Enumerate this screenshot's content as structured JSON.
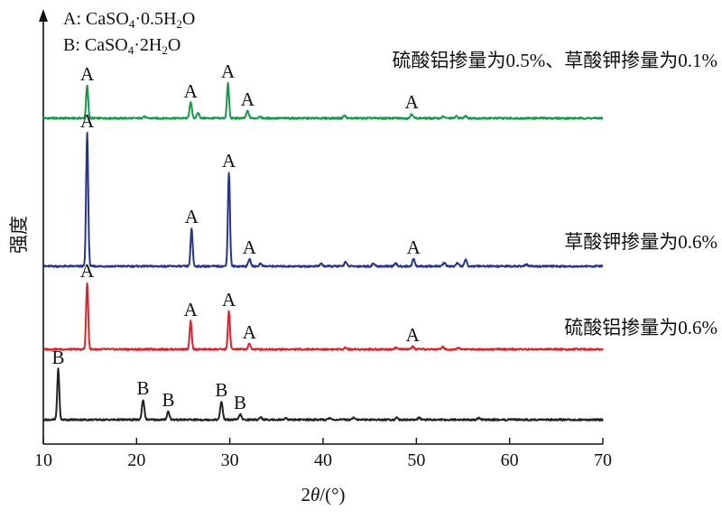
{
  "chart_data": {
    "type": "line",
    "xlabel_parts": [
      "2",
      "θ",
      "/(°)"
    ],
    "ylabel": "强度",
    "xlim": [
      10,
      70
    ],
    "x_ticks": [
      "10",
      "20",
      "30",
      "40",
      "50",
      "60",
      "70"
    ],
    "grid": false,
    "legend": [
      {
        "mark": "A",
        "sep": ": ",
        "formula": [
          "CaSO",
          "4",
          "·0.5H",
          "2",
          "O"
        ]
      },
      {
        "mark": "B",
        "sep": ": ",
        "formula": [
          "CaSO",
          "4",
          "·2H",
          "2",
          "O"
        ]
      }
    ],
    "series": [
      {
        "name": "硫酸铝掺量为0.5%、草酸钾掺量为0.1%",
        "color": "#16994a",
        "peaks": [
          {
            "x": 14.7,
            "h": 0.36,
            "label": "A"
          },
          {
            "x": 20.8,
            "h": 0.02,
            "label": ""
          },
          {
            "x": 25.8,
            "h": 0.17,
            "label": "A"
          },
          {
            "x": 26.6,
            "h": 0.06,
            "label": ""
          },
          {
            "x": 29.8,
            "h": 0.39,
            "label": "A"
          },
          {
            "x": 31.9,
            "h": 0.08,
            "label": "A"
          },
          {
            "x": 33.2,
            "h": 0.02,
            "label": ""
          },
          {
            "x": 42.3,
            "h": 0.03,
            "label": ""
          },
          {
            "x": 49.5,
            "h": 0.05,
            "label": "A"
          },
          {
            "x": 52.9,
            "h": 0.02,
            "label": ""
          },
          {
            "x": 54.3,
            "h": 0.02,
            "label": ""
          },
          {
            "x": 55.3,
            "h": 0.03,
            "label": ""
          }
        ]
      },
      {
        "name": "草酸钾掺量为0.6%",
        "color": "#26358c",
        "peaks": [
          {
            "x": 14.7,
            "h": 1.48,
            "label": "A"
          },
          {
            "x": 25.9,
            "h": 0.42,
            "label": "A"
          },
          {
            "x": 29.9,
            "h": 1.04,
            "label": "A"
          },
          {
            "x": 32.1,
            "h": 0.08,
            "label": "A"
          },
          {
            "x": 33.3,
            "h": 0.03,
            "label": ""
          },
          {
            "x": 39.8,
            "h": 0.03,
            "label": ""
          },
          {
            "x": 42.4,
            "h": 0.05,
            "label": ""
          },
          {
            "x": 45.4,
            "h": 0.03,
            "label": ""
          },
          {
            "x": 47.8,
            "h": 0.03,
            "label": ""
          },
          {
            "x": 49.7,
            "h": 0.08,
            "label": "A"
          },
          {
            "x": 53.0,
            "h": 0.04,
            "label": ""
          },
          {
            "x": 54.4,
            "h": 0.04,
            "label": ""
          },
          {
            "x": 55.3,
            "h": 0.07,
            "label": ""
          },
          {
            "x": 61.8,
            "h": 0.02,
            "label": ""
          }
        ]
      },
      {
        "name": "硫酸铝掺量为0.6%",
        "color": "#d7252e",
        "peaks": [
          {
            "x": 14.7,
            "h": 0.74,
            "label": "A"
          },
          {
            "x": 25.8,
            "h": 0.31,
            "label": "A"
          },
          {
            "x": 29.9,
            "h": 0.42,
            "label": "A"
          },
          {
            "x": 32.1,
            "h": 0.06,
            "label": "A"
          },
          {
            "x": 42.4,
            "h": 0.02,
            "label": ""
          },
          {
            "x": 47.8,
            "h": 0.02,
            "label": ""
          },
          {
            "x": 49.6,
            "h": 0.03,
            "label": "A"
          },
          {
            "x": 52.8,
            "h": 0.03,
            "label": ""
          },
          {
            "x": 54.5,
            "h": 0.02,
            "label": ""
          }
        ]
      },
      {
        "name": "",
        "color": "#222222",
        "peaks": [
          {
            "x": 11.6,
            "h": 0.56,
            "label": "B"
          },
          {
            "x": 20.7,
            "h": 0.22,
            "label": "B"
          },
          {
            "x": 23.4,
            "h": 0.09,
            "label": "B"
          },
          {
            "x": 29.1,
            "h": 0.2,
            "label": "B"
          },
          {
            "x": 31.1,
            "h": 0.06,
            "label": "B"
          },
          {
            "x": 33.3,
            "h": 0.03,
            "label": ""
          },
          {
            "x": 36.0,
            "h": 0.02,
            "label": ""
          },
          {
            "x": 40.7,
            "h": 0.02,
            "label": ""
          },
          {
            "x": 43.3,
            "h": 0.03,
            "label": ""
          },
          {
            "x": 47.9,
            "h": 0.02,
            "label": ""
          },
          {
            "x": 50.3,
            "h": 0.02,
            "label": ""
          },
          {
            "x": 56.7,
            "h": 0.02,
            "label": ""
          }
        ]
      }
    ]
  }
}
